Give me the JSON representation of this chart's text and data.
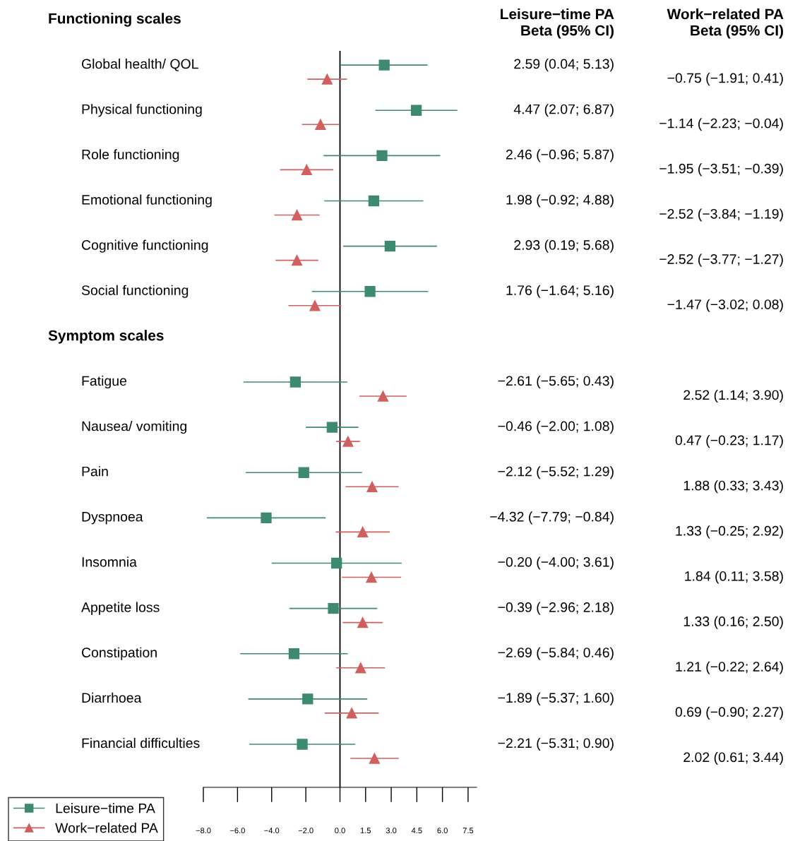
{
  "chart_data": {
    "type": "scatter",
    "orientation": "horizontal",
    "categories": [
      null,
      "Global health/ QOL",
      "Physical functioning",
      "Role functioning",
      "Emotional functioning",
      "Cognitive functioning",
      "Social functioning",
      null,
      "Fatigue",
      "Nausea/ vomiting",
      "Pain",
      "Dyspnoea",
      "Insomnia",
      "Appetite loss",
      "Constipation",
      "Diarrhoea",
      "Financial difficulties"
    ],
    "series": [
      {
        "name": "Leisure−time PA",
        "color": "#3d8a6e",
        "marker": "square",
        "values": [
          null,
          2.59,
          4.47,
          2.46,
          1.98,
          2.93,
          1.76,
          null,
          -2.61,
          -0.46,
          -2.12,
          -4.32,
          -0.2,
          -0.39,
          -2.69,
          -1.89,
          -2.21
        ],
        "errors": [
          null,
          [
            0.04,
            5.13
          ],
          [
            2.07,
            6.87
          ],
          [
            -0.96,
            5.87
          ],
          [
            -0.92,
            4.88
          ],
          [
            0.19,
            5.68
          ],
          [
            -1.64,
            5.16
          ],
          null,
          [
            -5.65,
            0.43
          ],
          [
            -2.0,
            1.08
          ],
          [
            -5.52,
            1.29
          ],
          [
            -7.79,
            -0.84
          ],
          [
            -4.0,
            3.61
          ],
          [
            -2.96,
            2.18
          ],
          [
            -5.84,
            0.46
          ],
          [
            -5.37,
            1.6
          ],
          [
            -5.31,
            0.9
          ]
        ],
        "value_labels": [
          null,
          "2.59 (0.04; 5.13)",
          "4.47 (2.07; 6.87)",
          "2.46 (−0.96; 5.87)",
          "1.98 (−0.92; 4.88)",
          "2.93 (0.19; 5.68)",
          "1.76 (−1.64; 5.16)",
          null,
          "−2.61 (−5.65; 0.43)",
          "−0.46 (−2.00; 1.08)",
          "−2.12 (−5.52; 1.29)",
          "−4.32 (−7.79; −0.84)",
          "−0.20 (−4.00; 3.61)",
          "−0.39 (−2.96; 2.18)",
          "−2.69 (−5.84; 0.46)",
          "−1.89 (−5.37; 1.60)",
          "−2.21 (−5.31; 0.90)"
        ]
      },
      {
        "name": "Work−related PA",
        "color": "#d0605f",
        "marker": "triangle",
        "values": [
          null,
          -0.75,
          -1.14,
          -1.95,
          -2.52,
          -2.52,
          -1.47,
          null,
          2.52,
          0.47,
          1.88,
          1.33,
          1.84,
          1.33,
          1.21,
          0.69,
          2.02
        ],
        "errors": [
          null,
          [
            -1.91,
            0.41
          ],
          [
            -2.23,
            -0.04
          ],
          [
            -3.51,
            -0.39
          ],
          [
            -3.84,
            -1.19
          ],
          [
            -3.77,
            -1.27
          ],
          [
            -3.02,
            0.08
          ],
          null,
          [
            1.14,
            3.9
          ],
          [
            -0.23,
            1.17
          ],
          [
            0.33,
            3.43
          ],
          [
            -0.25,
            2.92
          ],
          [
            0.11,
            3.58
          ],
          [
            0.16,
            2.5
          ],
          [
            -0.22,
            2.64
          ],
          [
            -0.9,
            2.27
          ],
          [
            0.61,
            3.44
          ]
        ],
        "value_labels": [
          null,
          "−0.75 (−1.91; 0.41)",
          "−1.14 (−2.23; −0.04)",
          "−1.95 (−3.51; −0.39)",
          "−2.52 (−3.84; −1.19)",
          "−2.52 (−3.77; −1.27)",
          "−1.47 (−3.02; 0.08)",
          null,
          "2.52 (1.14; 3.90)",
          "0.47 (−0.23; 1.17)",
          "1.88 (0.33; 3.43)",
          "1.33 (−0.25; 2.92)",
          "1.84 (0.11; 3.58)",
          "1.33 (0.16; 2.50)",
          "1.21 (−0.22; 2.64)",
          "0.69 (−0.90; 2.27)",
          "2.02 (0.61; 3.44)"
        ]
      }
    ],
    "annotations": [
      "Leisure−time PA\nBeta (95% CI)",
      "Work−related PA\nBeta (95% CI)",
      "Functioning scales",
      "Symptom scales"
    ],
    "xlim": [
      -8,
      8
    ],
    "xticks": [
      {
        "value": -8,
        "label": "−8.0"
      },
      {
        "value": -6,
        "label": "−6.0"
      },
      {
        "value": -4,
        "label": "−4.0"
      },
      {
        "value": -2,
        "label": "−2.0"
      },
      {
        "value": 0,
        "label": "0.0"
      },
      {
        "value": 1.5,
        "label": "1.5"
      },
      {
        "value": 3,
        "label": "3.0"
      },
      {
        "value": 4.5,
        "label": "4.5"
      },
      {
        "value": 6,
        "label": "6.0"
      },
      {
        "value": 7.5,
        "label": "7.5"
      }
    ],
    "ref_lines": [
      {
        "axis": "x",
        "value": 0,
        "color": "#000000"
      }
    ],
    "grid": false,
    "legend": "bottom left"
  }
}
